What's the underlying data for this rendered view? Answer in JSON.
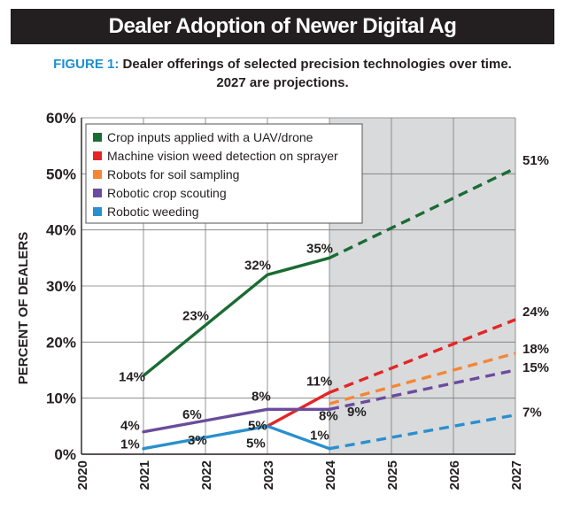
{
  "header": {
    "title": "Dealer Adoption of Newer Digital Ag",
    "figure_label": "FIGURE 1:",
    "subtitle_line1": "Dealer offerings of selected precision technologies over time.",
    "subtitle_line2": "2027 are projections."
  },
  "chart_data": {
    "type": "line",
    "ylabel": "PERCENT OF DEALERS",
    "xlabel": "",
    "xlim": [
      2020,
      2027
    ],
    "ylim": [
      0,
      60
    ],
    "x_ticks": [
      "2020",
      "2021",
      "2022",
      "2023",
      "2024",
      "2025",
      "2026",
      "2027"
    ],
    "y_ticks": [
      "0%",
      "10%",
      "20%",
      "30%",
      "40%",
      "50%",
      "60%"
    ],
    "grid": true,
    "legend_position": "top-left",
    "projection_region": [
      2024,
      2027
    ],
    "series": [
      {
        "name": "Crop inputs applied with a UAV/drone",
        "color": "#1b6b34",
        "actual": [
          [
            2021,
            14
          ],
          [
            2022,
            23
          ],
          [
            2023,
            32
          ],
          [
            2024,
            35
          ]
        ],
        "projected": [
          [
            2024,
            35
          ],
          [
            2027,
            51
          ]
        ],
        "labels": [
          "14%",
          "23%",
          "32%",
          "35%",
          "51%"
        ]
      },
      {
        "name": "Machine vision weed detection on sprayer",
        "color": "#e42526",
        "actual": [
          [
            2023,
            5
          ],
          [
            2024,
            11
          ]
        ],
        "projected": [
          [
            2024,
            11
          ],
          [
            2027,
            24
          ]
        ],
        "labels": [
          "11%",
          "24%"
        ]
      },
      {
        "name": "Robots for soil sampling",
        "color": "#f58634",
        "actual": [],
        "projected": [
          [
            2024,
            9
          ],
          [
            2027,
            18
          ]
        ],
        "labels": [
          "9%",
          "18%"
        ]
      },
      {
        "name": "Robotic crop scouting",
        "color": "#6a4c9c",
        "actual": [
          [
            2021,
            4
          ],
          [
            2022,
            6
          ],
          [
            2023,
            8
          ],
          [
            2024,
            8
          ]
        ],
        "projected": [
          [
            2024,
            8
          ],
          [
            2027,
            15
          ]
        ],
        "labels": [
          "4%",
          "6%",
          "8%",
          "8%",
          "15%"
        ]
      },
      {
        "name": "Robotic weeding",
        "color": "#2a8fce",
        "actual": [
          [
            2021,
            1
          ],
          [
            2022,
            3
          ],
          [
            2023,
            5
          ],
          [
            2024,
            1
          ]
        ],
        "projected": [
          [
            2024,
            1
          ],
          [
            2027,
            7
          ]
        ],
        "labels": [
          "1%",
          "3%",
          "5%",
          "1%",
          "7%"
        ]
      }
    ],
    "point_labels": [
      {
        "text": "14%",
        "x": 2021,
        "y": 14
      },
      {
        "text": "23%",
        "x": 2022,
        "y": 23
      },
      {
        "text": "32%",
        "x": 2023,
        "y": 32
      },
      {
        "text": "35%",
        "x": 2024,
        "y": 35
      },
      {
        "text": "51%",
        "x": 2027,
        "y": 51
      },
      {
        "text": "24%",
        "x": 2027,
        "y": 24
      },
      {
        "text": "18%",
        "x": 2027,
        "y": 18
      },
      {
        "text": "15%",
        "x": 2027,
        "y": 15
      },
      {
        "text": "7%",
        "x": 2027,
        "y": 7
      },
      {
        "text": "11%",
        "x": 2024,
        "y": 11
      },
      {
        "text": "9%",
        "x": 2024,
        "y": 9
      },
      {
        "text": "8%",
        "x": 2024,
        "y": 8
      },
      {
        "text": "8%",
        "x": 2023,
        "y": 8
      },
      {
        "text": "5%",
        "x": 2023,
        "y": 5
      },
      {
        "text": "5%",
        "x": 2023,
        "y": 5
      },
      {
        "text": "1%",
        "x": 2024,
        "y": 1
      },
      {
        "text": "6%",
        "x": 2022,
        "y": 6
      },
      {
        "text": "4%",
        "x": 2021,
        "y": 4
      },
      {
        "text": "3%",
        "x": 2022,
        "y": 3
      },
      {
        "text": "1%",
        "x": 2021,
        "y": 1
      }
    ]
  }
}
